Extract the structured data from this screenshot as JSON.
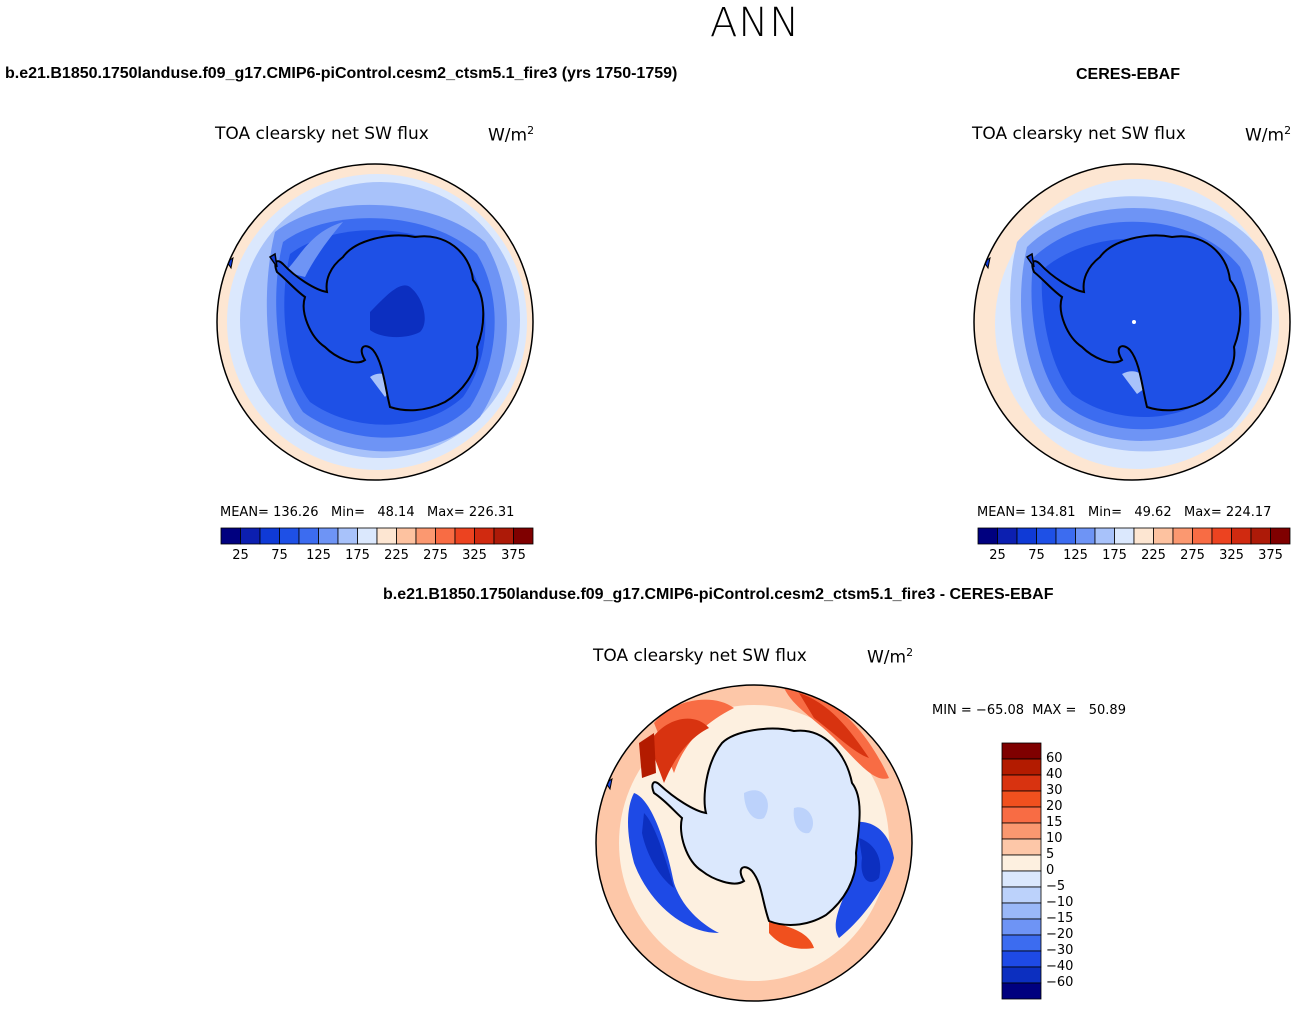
{
  "figure": {
    "season": "ANN",
    "left_panel": {
      "case_title": "b.e21.B1850.1750landuse.f09_g17.CMIP6-piControl.cesm2_ctsm5.1_fire3 (yrs 1750-1759)",
      "field": "TOA clearsky net SW flux",
      "units": "W/m",
      "units_sup": "2",
      "stats": {
        "mean_label": "MEAN=",
        "mean": "136.26",
        "min_label": "Min=",
        "min": "48.14",
        "max_label": "Max=",
        "max": "226.31"
      }
    },
    "right_panel": {
      "case_title": "CERES-EBAF",
      "field": "TOA clearsky net SW flux",
      "units": "W/m",
      "units_sup": "2",
      "stats": {
        "mean_label": "MEAN=",
        "mean": "134.81",
        "min_label": "Min=",
        "min": "49.62",
        "max_label": "Max=",
        "max": "224.17"
      }
    },
    "diff_panel": {
      "case_title": "b.e21.B1850.1750landuse.f09_g17.CMIP6-piControl.cesm2_ctsm5.1_fire3 - CERES-EBAF",
      "field": "TOA clearsky net SW flux",
      "units": "W/m",
      "units_sup": "2",
      "minmax": "MIN = −65.08  MAX =   50.89"
    },
    "colorbar_main": {
      "ticks": [
        "25",
        "75",
        "125",
        "175",
        "225",
        "275",
        "325",
        "375"
      ],
      "colors": [
        "#00007f",
        "#0c1fb0",
        "#0f3ad6",
        "#1e50e6",
        "#3c6cf0",
        "#6e94f5",
        "#a8c2fa",
        "#dbe8fd",
        "#fde6d2",
        "#fdc2a0",
        "#fb9870",
        "#f86c44",
        "#ec4320",
        "#d02a10",
        "#ad1a08",
        "#7f0000"
      ]
    },
    "colorbar_diff": {
      "ticks": [
        "60",
        "40",
        "30",
        "20",
        "15",
        "10",
        "5",
        "0",
        "−5",
        "−10",
        "−15",
        "−20",
        "−30",
        "−40",
        "−60"
      ],
      "colors": [
        "#7f0000",
        "#b31b00",
        "#d83310",
        "#f0501e",
        "#f86c44",
        "#fa9870",
        "#fdc7a8",
        "#fdf0e0",
        "#dbe8fd",
        "#bcd2fb",
        "#9ab8f8",
        "#6e94f5",
        "#3c6cf0",
        "#1e4ae6",
        "#0c2fc0",
        "#00007f"
      ]
    },
    "map_colors": {
      "land_mean": "#1e50e6",
      "deep_low": "#0c2fc0",
      "ocean_outer": "#fde6d2",
      "diff_land": "#dbe8fd",
      "diff_pos": "#f0501e",
      "diff_neg": "#1e50e6"
    }
  }
}
